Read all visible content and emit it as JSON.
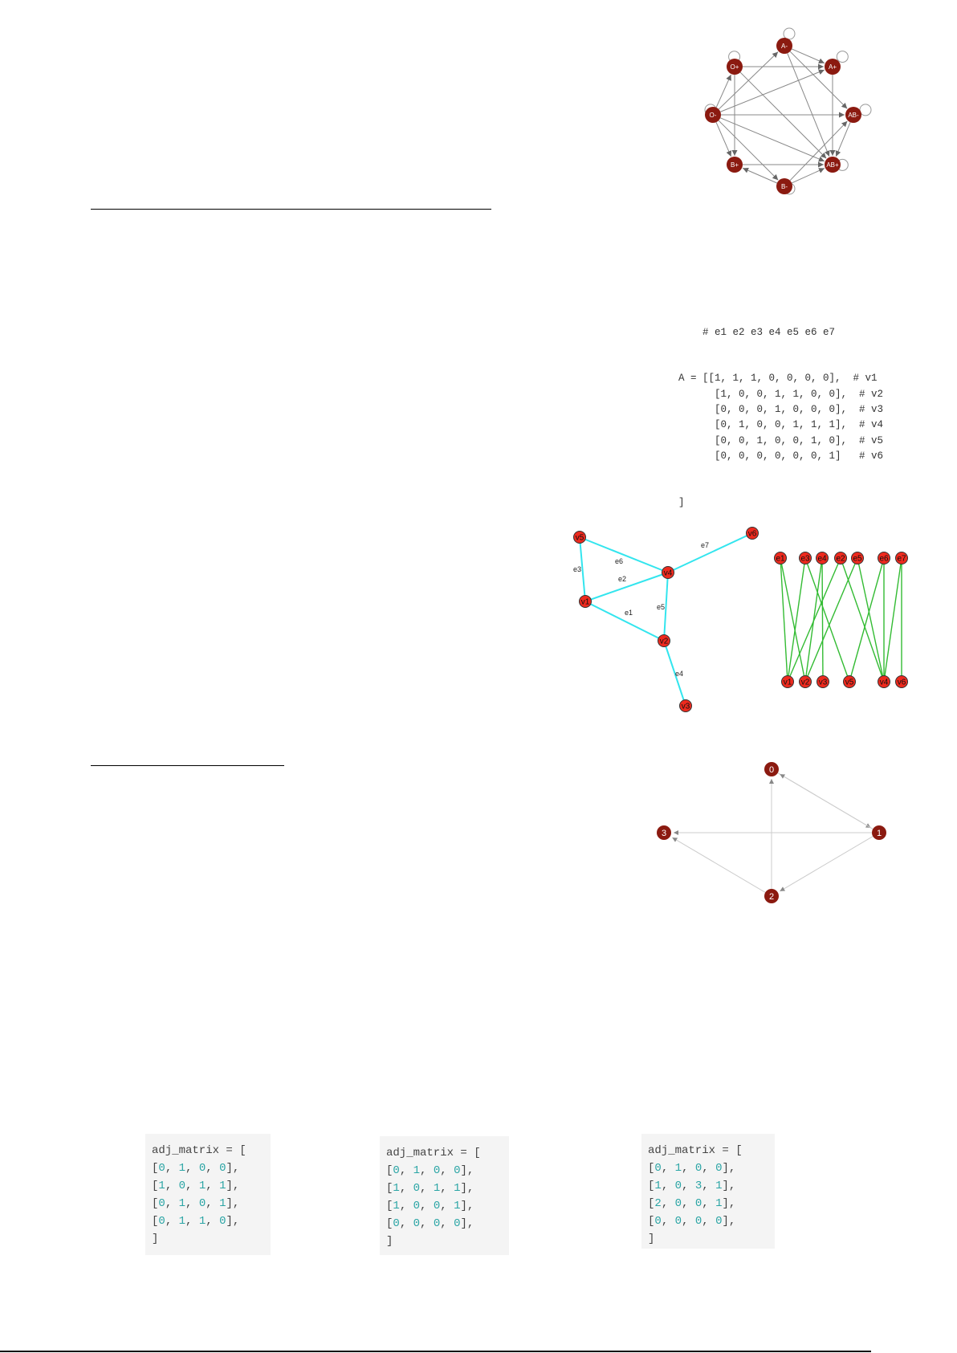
{
  "blood_graph": {
    "node_color": "#8b1a10",
    "edge_color": "#888888",
    "nodes": [
      "A-",
      "A+",
      "AB-",
      "AB+",
      "B-",
      "B+",
      "O-",
      "O+"
    ],
    "edges": [
      [
        "O-",
        "O-"
      ],
      [
        "O-",
        "O+"
      ],
      [
        "O-",
        "A-"
      ],
      [
        "O-",
        "A+"
      ],
      [
        "O-",
        "B-"
      ],
      [
        "O-",
        "B+"
      ],
      [
        "O-",
        "AB-"
      ],
      [
        "O-",
        "AB+"
      ],
      [
        "O+",
        "O+"
      ],
      [
        "O+",
        "A+"
      ],
      [
        "O+",
        "B+"
      ],
      [
        "O+",
        "AB+"
      ],
      [
        "A-",
        "A-"
      ],
      [
        "A-",
        "A+"
      ],
      [
        "A-",
        "AB-"
      ],
      [
        "A-",
        "AB+"
      ],
      [
        "A+",
        "A+"
      ],
      [
        "A+",
        "AB+"
      ],
      [
        "B-",
        "B-"
      ],
      [
        "B-",
        "B+"
      ],
      [
        "B-",
        "AB-"
      ],
      [
        "B-",
        "AB+"
      ],
      [
        "B+",
        "B+"
      ],
      [
        "B+",
        "AB+"
      ],
      [
        "AB-",
        "AB-"
      ],
      [
        "AB-",
        "AB+"
      ],
      [
        "AB+",
        "AB+"
      ]
    ]
  },
  "incidence_matrix": {
    "header": "# e1 e2 e3 e4 e5 e6 e7",
    "name": "A",
    "columns": [
      "e1",
      "e2",
      "e3",
      "e4",
      "e5",
      "e6",
      "e7"
    ],
    "rows": [
      {
        "label": "v1",
        "values": [
          1,
          1,
          1,
          0,
          0,
          0,
          0
        ]
      },
      {
        "label": "v2",
        "values": [
          1,
          0,
          0,
          1,
          1,
          0,
          0
        ]
      },
      {
        "label": "v3",
        "values": [
          0,
          0,
          0,
          1,
          0,
          0,
          0
        ]
      },
      {
        "label": "v4",
        "values": [
          0,
          1,
          0,
          0,
          1,
          1,
          1
        ]
      },
      {
        "label": "v5",
        "values": [
          0,
          0,
          1,
          0,
          0,
          1,
          0
        ]
      },
      {
        "label": "v6",
        "values": [
          0,
          0,
          0,
          0,
          0,
          0,
          1
        ]
      }
    ]
  },
  "graph_drawing": {
    "node_color": "#ee2a1e",
    "edge_color": "#33e5ee",
    "nodes": [
      "v1",
      "v2",
      "v3",
      "v4",
      "v5",
      "v6"
    ],
    "edges": [
      {
        "label": "e1",
        "from": "v1",
        "to": "v2"
      },
      {
        "label": "e2",
        "from": "v1",
        "to": "v4"
      },
      {
        "label": "e3",
        "from": "v1",
        "to": "v5"
      },
      {
        "label": "e4",
        "from": "v2",
        "to": "v3"
      },
      {
        "label": "e5",
        "from": "v2",
        "to": "v4"
      },
      {
        "label": "e6",
        "from": "v4",
        "to": "v5"
      },
      {
        "label": "e7",
        "from": "v4",
        "to": "v6"
      }
    ]
  },
  "bipartite_drawing": {
    "edge_color": "#33bb33",
    "top": [
      "e1",
      "e3",
      "e4",
      "e2",
      "e5",
      "e6",
      "e7"
    ],
    "bottom": [
      "v1",
      "v2",
      "v3",
      "v5",
      "v4",
      "v6"
    ]
  },
  "directed_graph": {
    "node_color": "#8b1a10",
    "nodes": [
      "0",
      "1",
      "2",
      "3"
    ],
    "edges": [
      [
        "0",
        "1"
      ],
      [
        "1",
        "0"
      ],
      [
        "1",
        "3"
      ],
      [
        "1",
        "2"
      ],
      [
        "2",
        "3"
      ],
      [
        "2",
        "0"
      ]
    ]
  },
  "code_blocks": [
    {
      "header": "adj_matrix = [",
      "rows": [
        [
          0,
          1,
          0,
          0
        ],
        [
          1,
          0,
          1,
          1
        ],
        [
          0,
          1,
          0,
          1
        ],
        [
          0,
          1,
          1,
          0
        ]
      ],
      "footer": "]"
    },
    {
      "header": "adj_matrix = [",
      "rows": [
        [
          0,
          1,
          0,
          0
        ],
        [
          1,
          0,
          1,
          1
        ],
        [
          1,
          0,
          0,
          1
        ],
        [
          0,
          0,
          0,
          0
        ]
      ],
      "footer": "]"
    },
    {
      "header": "adj_matrix = [",
      "rows": [
        [
          0,
          1,
          0,
          0
        ],
        [
          1,
          0,
          3,
          1
        ],
        [
          2,
          0,
          0,
          1
        ],
        [
          0,
          0,
          0,
          0
        ]
      ],
      "footer": "]"
    }
  ]
}
